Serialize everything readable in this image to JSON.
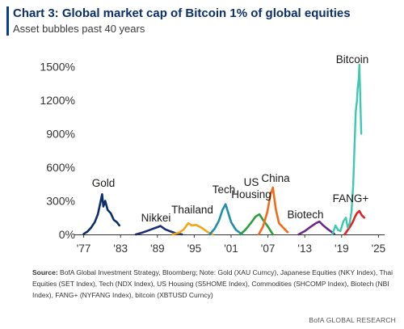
{
  "header": {
    "title": "Chart 3: Global market cap of Bitcoin 1% of global equities",
    "subtitle": "Asset bubbles past 40 years"
  },
  "footnote": {
    "label": "Source:",
    "text": "BofA Global Investment Strategy, Bloomberg; Note: Gold (XAU Curncy), Japanese Equities (NKY Index), Thai Equities (SET Index), Tech (NDX Index), US Housing (S5HOME Index), Commodities (SHCOMP Index), Biotech (NBI Index), FANG+ (NYFANG Index), bitcoin (XBTUSD Curncy)",
    "brand": "BofA GLOBAL RESEARCH"
  },
  "chart_data": {
    "type": "line",
    "title": "Chart 3: Global market cap of Bitcoin 1% of global equities",
    "subtitle": "Asset bubbles past 40 years",
    "x_ticks": [
      "'77",
      "'83",
      "'89",
      "'95",
      "'01",
      "'07",
      "'13",
      "'19",
      "'25"
    ],
    "x_tick_years": [
      1977,
      1983,
      1989,
      1995,
      2001,
      2007,
      2013,
      2019,
      2025
    ],
    "y_ticks": [
      "0%",
      "300%",
      "600%",
      "900%",
      "1200%",
      "1500%"
    ],
    "y_tick_values": [
      0,
      300,
      600,
      900,
      1200,
      1500
    ],
    "xlim": [
      1976,
      2026
    ],
    "ylim": [
      0,
      1650
    ],
    "grid": false,
    "legend": "inline labels",
    "colors": {
      "gold": "#0b2d6b",
      "nikkei": "#1c2f6e",
      "thailand": "#f2a51a",
      "tech": "#1f8ea8",
      "housing": "#2f9e3f",
      "china": "#f26b1d",
      "biotech": "#6b2a86",
      "fang": "#e02424",
      "bitcoin": "#3ec8b0"
    },
    "series": [
      {
        "name": "Gold",
        "x": [
          1977.0,
          1977.6,
          1978.2,
          1978.8,
          1979.3,
          1979.7,
          1980.0,
          1980.2,
          1980.5,
          1980.9,
          1981.4,
          1981.9,
          1982.4,
          1982.8
        ],
        "y": [
          5,
          25,
          60,
          110,
          180,
          280,
          360,
          250,
          300,
          220,
          190,
          130,
          110,
          80
        ]
      },
      {
        "name": "Nikkei",
        "x": [
          1985.5,
          1986.5,
          1987.5,
          1988.5,
          1989.5,
          1990.3,
          1991.0,
          1992.0,
          1993.0
        ],
        "y": [
          0,
          15,
          35,
          55,
          75,
          45,
          30,
          10,
          0
        ]
      },
      {
        "name": "Thailand",
        "x": [
          1991.5,
          1992.5,
          1993.3,
          1994.0,
          1994.6,
          1995.3,
          1996.2,
          1997.2,
          1998.0
        ],
        "y": [
          0,
          15,
          45,
          100,
          80,
          85,
          60,
          20,
          0
        ]
      },
      {
        "name": "Tech",
        "x": [
          1997.5,
          1998.3,
          1999.0,
          1999.6,
          2000.1,
          2000.5,
          2001.0,
          2001.8,
          2002.8
        ],
        "y": [
          0,
          50,
          120,
          220,
          270,
          200,
          110,
          40,
          0
        ]
      },
      {
        "name": "US Housing",
        "x": [
          2002.5,
          2003.3,
          2004.2,
          2005.0,
          2005.6,
          2006.2,
          2007.0,
          2007.8
        ],
        "y": [
          0,
          40,
          100,
          160,
          180,
          130,
          70,
          0
        ]
      },
      {
        "name": "China",
        "x": [
          2005.5,
          2006.2,
          2006.9,
          2007.4,
          2007.8,
          2008.3,
          2008.8,
          2009.5,
          2010.2
        ],
        "y": [
          0,
          70,
          200,
          350,
          420,
          220,
          100,
          60,
          20
        ]
      },
      {
        "name": "Biotech",
        "x": [
          2012.0,
          2013.0,
          2014.0,
          2014.8,
          2015.4,
          2016.0,
          2016.8,
          2017.8
        ],
        "y": [
          0,
          30,
          70,
          100,
          115,
          80,
          45,
          5
        ]
      },
      {
        "name": "FANG+",
        "x": [
          2019.5,
          2020.0,
          2020.4,
          2020.8,
          2021.2,
          2021.5,
          2021.9,
          2022.3,
          2022.7
        ],
        "y": [
          0,
          40,
          70,
          110,
          160,
          190,
          210,
          170,
          150
        ]
      },
      {
        "name": "Bitcoin",
        "x": [
          2017.5,
          2018.0,
          2018.4,
          2018.8,
          2019.3,
          2019.7,
          2020.0,
          2020.3,
          2020.6,
          2020.9,
          2021.1,
          2021.3,
          2021.5,
          2021.6,
          2021.8,
          2021.9,
          2022.2
        ],
        "y": [
          0,
          80,
          40,
          30,
          120,
          150,
          60,
          100,
          200,
          450,
          800,
          1100,
          1200,
          1300,
          1400,
          1520,
          900
        ]
      }
    ],
    "labels": [
      {
        "name": "Gold",
        "text": "Gold"
      },
      {
        "name": "Nikkei",
        "text": "Nikkei"
      },
      {
        "name": "Thailand",
        "text": "Thailand"
      },
      {
        "name": "Tech",
        "text": "Tech"
      },
      {
        "name": "US Housing",
        "text": "US\nHousing"
      },
      {
        "name": "China",
        "text": "China"
      },
      {
        "name": "Biotech",
        "text": "Biotech"
      },
      {
        "name": "FANG+",
        "text": "FANG+"
      },
      {
        "name": "Bitcoin",
        "text": "Bitcoin"
      }
    ]
  }
}
